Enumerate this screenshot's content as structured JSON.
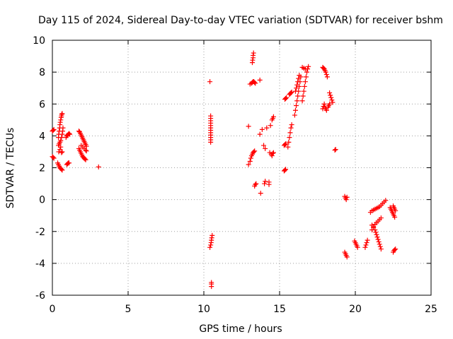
{
  "chart_data": {
    "type": "scatter",
    "title": "Day 115 of 2024, Sidereal Day-to-day VTEC variation (SDTVAR) for receiver bshm",
    "xlabel": "GPS time / hours",
    "ylabel": "SDTVAR / TECUs",
    "xlim": [
      0,
      25
    ],
    "ylim": [
      -6,
      10
    ],
    "xticks": [
      0,
      5,
      10,
      15,
      20,
      25
    ],
    "yticks": [
      -6,
      -4,
      -2,
      0,
      2,
      4,
      6,
      8,
      10
    ],
    "x_tick_labels": [
      "0",
      "5",
      "10",
      "15",
      "20",
      "25"
    ],
    "y_tick_labels": [
      "-6",
      "-4",
      "-2",
      "0",
      "2",
      "4",
      "6",
      "8",
      "10"
    ],
    "grid": true,
    "marker": "+",
    "marker_color": "#ff0000",
    "series": [
      {
        "name": "SDTVAR",
        "points": [
          [
            0.0,
            4.3
          ],
          [
            0.05,
            4.35
          ],
          [
            0.1,
            4.4
          ],
          [
            0.0,
            2.7
          ],
          [
            0.05,
            2.65
          ],
          [
            0.1,
            2.6
          ],
          [
            0.35,
            2.3
          ],
          [
            0.4,
            2.2
          ],
          [
            0.45,
            2.1
          ],
          [
            0.5,
            2.0
          ],
          [
            0.55,
            1.95
          ],
          [
            0.6,
            1.9
          ],
          [
            0.65,
            1.85
          ],
          [
            0.4,
            3.9
          ],
          [
            0.42,
            4.1
          ],
          [
            0.45,
            4.3
          ],
          [
            0.48,
            4.5
          ],
          [
            0.5,
            4.7
          ],
          [
            0.52,
            4.85
          ],
          [
            0.55,
            5.0
          ],
          [
            0.58,
            5.15
          ],
          [
            0.6,
            5.25
          ],
          [
            0.62,
            5.35
          ],
          [
            0.65,
            5.4
          ],
          [
            0.4,
            3.4
          ],
          [
            0.45,
            3.5
          ],
          [
            0.5,
            3.6
          ],
          [
            0.55,
            3.7
          ],
          [
            0.6,
            3.9
          ],
          [
            0.65,
            4.1
          ],
          [
            0.68,
            4.3
          ],
          [
            0.7,
            4.5
          ],
          [
            0.42,
            3.0
          ],
          [
            0.5,
            3.15
          ],
          [
            0.55,
            3.3
          ],
          [
            0.6,
            2.95
          ],
          [
            0.65,
            3.0
          ],
          [
            0.9,
            3.9
          ],
          [
            0.95,
            4.0
          ],
          [
            1.0,
            4.05
          ],
          [
            1.05,
            4.1
          ],
          [
            1.1,
            4.15
          ],
          [
            1.15,
            4.1
          ],
          [
            0.95,
            2.2
          ],
          [
            1.0,
            2.25
          ],
          [
            1.05,
            2.3
          ],
          [
            1.1,
            2.3
          ],
          [
            1.75,
            4.3
          ],
          [
            1.8,
            4.25
          ],
          [
            1.85,
            4.15
          ],
          [
            1.9,
            4.05
          ],
          [
            1.95,
            3.95
          ],
          [
            2.0,
            3.85
          ],
          [
            2.05,
            3.75
          ],
          [
            2.1,
            3.65
          ],
          [
            2.15,
            3.55
          ],
          [
            2.2,
            3.45
          ],
          [
            2.25,
            3.35
          ],
          [
            1.75,
            3.2
          ],
          [
            1.8,
            3.1
          ],
          [
            1.85,
            3.0
          ],
          [
            1.9,
            2.9
          ],
          [
            1.95,
            2.8
          ],
          [
            2.0,
            2.7
          ],
          [
            2.05,
            2.65
          ],
          [
            2.1,
            2.6
          ],
          [
            2.15,
            2.55
          ],
          [
            2.2,
            2.5
          ],
          [
            1.9,
            3.4
          ],
          [
            2.0,
            3.3
          ],
          [
            2.1,
            3.2
          ],
          [
            2.2,
            3.1
          ],
          [
            2.25,
            3.05
          ],
          [
            3.05,
            2.05
          ],
          [
            10.4,
            7.4
          ],
          [
            10.45,
            3.6
          ],
          [
            10.45,
            3.75
          ],
          [
            10.45,
            3.9
          ],
          [
            10.45,
            4.05
          ],
          [
            10.45,
            4.2
          ],
          [
            10.45,
            4.35
          ],
          [
            10.45,
            4.5
          ],
          [
            10.45,
            4.65
          ],
          [
            10.45,
            4.8
          ],
          [
            10.45,
            4.95
          ],
          [
            10.45,
            5.1
          ],
          [
            10.45,
            5.25
          ],
          [
            10.4,
            -3.0
          ],
          [
            10.45,
            -2.85
          ],
          [
            10.48,
            -2.7
          ],
          [
            10.5,
            -2.55
          ],
          [
            10.52,
            -2.4
          ],
          [
            10.55,
            -2.25
          ],
          [
            10.5,
            -5.2
          ],
          [
            10.5,
            -5.3
          ],
          [
            10.5,
            -5.45
          ],
          [
            12.95,
            4.6
          ],
          [
            13.05,
            7.25
          ],
          [
            13.15,
            7.3
          ],
          [
            13.2,
            7.35
          ],
          [
            13.25,
            7.4
          ],
          [
            13.3,
            7.4
          ],
          [
            13.35,
            7.35
          ],
          [
            13.4,
            7.3
          ],
          [
            13.2,
            8.6
          ],
          [
            13.22,
            8.75
          ],
          [
            13.25,
            8.9
          ],
          [
            13.25,
            9.05
          ],
          [
            13.28,
            9.2
          ],
          [
            13.7,
            7.5
          ],
          [
            12.95,
            2.2
          ],
          [
            13.05,
            2.4
          ],
          [
            13.1,
            2.6
          ],
          [
            13.15,
            2.75
          ],
          [
            13.2,
            2.85
          ],
          [
            13.25,
            2.95
          ],
          [
            13.3,
            3.0
          ],
          [
            13.35,
            3.05
          ],
          [
            13.35,
            0.85
          ],
          [
            13.4,
            0.95
          ],
          [
            13.45,
            1.0
          ],
          [
            13.7,
            4.1
          ],
          [
            13.85,
            4.4
          ],
          [
            13.95,
            3.4
          ],
          [
            14.05,
            3.2
          ],
          [
            13.75,
            0.4
          ],
          [
            14.0,
            1.0
          ],
          [
            14.05,
            1.15
          ],
          [
            14.3,
            1.1
          ],
          [
            14.3,
            0.95
          ],
          [
            14.15,
            4.5
          ],
          [
            14.4,
            4.65
          ],
          [
            14.35,
            2.95
          ],
          [
            14.45,
            2.85
          ],
          [
            14.5,
            2.75
          ],
          [
            14.55,
            2.9
          ],
          [
            14.6,
            2.95
          ],
          [
            14.5,
            5.0
          ],
          [
            14.55,
            5.1
          ],
          [
            14.6,
            5.2
          ],
          [
            15.3,
            1.8
          ],
          [
            15.35,
            1.85
          ],
          [
            15.4,
            1.9
          ],
          [
            15.3,
            3.4
          ],
          [
            15.35,
            3.45
          ],
          [
            15.4,
            3.5
          ],
          [
            15.35,
            6.3
          ],
          [
            15.4,
            6.35
          ],
          [
            15.45,
            6.4
          ],
          [
            15.55,
            3.3
          ],
          [
            15.6,
            3.6
          ],
          [
            15.65,
            3.9
          ],
          [
            15.7,
            4.2
          ],
          [
            15.75,
            4.5
          ],
          [
            15.8,
            4.7
          ],
          [
            15.65,
            6.6
          ],
          [
            15.7,
            6.65
          ],
          [
            15.75,
            6.7
          ],
          [
            15.8,
            6.75
          ],
          [
            16.0,
            5.3
          ],
          [
            16.05,
            5.6
          ],
          [
            16.1,
            5.9
          ],
          [
            16.15,
            6.2
          ],
          [
            16.2,
            6.5
          ],
          [
            16.25,
            6.8
          ],
          [
            16.3,
            7.1
          ],
          [
            16.35,
            7.4
          ],
          [
            16.4,
            7.7
          ],
          [
            16.05,
            6.8
          ],
          [
            16.1,
            7.0
          ],
          [
            16.15,
            7.2
          ],
          [
            16.2,
            7.4
          ],
          [
            16.25,
            7.6
          ],
          [
            16.3,
            7.8
          ],
          [
            16.5,
            6.2
          ],
          [
            16.55,
            6.5
          ],
          [
            16.6,
            6.8
          ],
          [
            16.65,
            7.1
          ],
          [
            16.7,
            7.4
          ],
          [
            16.75,
            7.7
          ],
          [
            16.8,
            8.0
          ],
          [
            16.85,
            8.2
          ],
          [
            16.9,
            8.35
          ],
          [
            16.5,
            8.3
          ],
          [
            16.6,
            8.25
          ],
          [
            16.7,
            8.2
          ],
          [
            17.85,
            5.7
          ],
          [
            17.9,
            5.85
          ],
          [
            17.95,
            6.0
          ],
          [
            18.0,
            5.8
          ],
          [
            18.05,
            5.7
          ],
          [
            18.1,
            5.6
          ],
          [
            17.85,
            8.3
          ],
          [
            17.9,
            8.25
          ],
          [
            17.95,
            8.2
          ],
          [
            18.0,
            8.1
          ],
          [
            18.05,
            8.0
          ],
          [
            18.1,
            7.85
          ],
          [
            18.15,
            7.7
          ],
          [
            18.2,
            5.8
          ],
          [
            18.25,
            5.9
          ],
          [
            18.3,
            6.0
          ],
          [
            18.3,
            6.7
          ],
          [
            18.35,
            6.55
          ],
          [
            18.4,
            6.4
          ],
          [
            18.45,
            6.25
          ],
          [
            18.5,
            6.1
          ],
          [
            18.65,
            3.1
          ],
          [
            18.7,
            3.15
          ],
          [
            19.3,
            0.2
          ],
          [
            19.35,
            0.1
          ],
          [
            19.4,
            0.0
          ],
          [
            19.45,
            0.15
          ],
          [
            19.3,
            -3.3
          ],
          [
            19.35,
            -3.4
          ],
          [
            19.4,
            -3.5
          ],
          [
            19.45,
            -3.6
          ],
          [
            19.95,
            -2.6
          ],
          [
            20.0,
            -2.7
          ],
          [
            20.05,
            -2.8
          ],
          [
            20.1,
            -2.9
          ],
          [
            20.15,
            -3.0
          ],
          [
            20.65,
            -3.0
          ],
          [
            20.7,
            -2.85
          ],
          [
            20.75,
            -2.7
          ],
          [
            20.8,
            -2.55
          ],
          [
            21.0,
            -0.8
          ],
          [
            21.1,
            -0.7
          ],
          [
            21.2,
            -0.65
          ],
          [
            21.3,
            -0.6
          ],
          [
            21.4,
            -0.55
          ],
          [
            21.5,
            -0.5
          ],
          [
            21.1,
            -1.6
          ],
          [
            21.2,
            -1.75
          ],
          [
            21.3,
            -1.9
          ],
          [
            21.35,
            -2.05
          ],
          [
            21.4,
            -2.2
          ],
          [
            21.45,
            -2.35
          ],
          [
            21.5,
            -2.5
          ],
          [
            21.55,
            -2.65
          ],
          [
            21.6,
            -2.8
          ],
          [
            21.65,
            -2.95
          ],
          [
            21.7,
            -3.1
          ],
          [
            21.1,
            -1.9
          ],
          [
            21.2,
            -1.7
          ],
          [
            21.3,
            -1.55
          ],
          [
            21.4,
            -1.45
          ],
          [
            21.5,
            -1.35
          ],
          [
            21.6,
            -1.25
          ],
          [
            21.7,
            -1.15
          ],
          [
            21.6,
            -0.45
          ],
          [
            21.7,
            -0.35
          ],
          [
            21.8,
            -0.25
          ],
          [
            21.9,
            -0.15
          ],
          [
            22.0,
            -0.05
          ],
          [
            22.3,
            -0.5
          ],
          [
            22.35,
            -0.6
          ],
          [
            22.4,
            -0.7
          ],
          [
            22.45,
            -0.8
          ],
          [
            22.5,
            -0.9
          ],
          [
            22.55,
            -1.0
          ],
          [
            22.6,
            -1.1
          ],
          [
            22.5,
            -0.4
          ],
          [
            22.55,
            -0.5
          ],
          [
            22.6,
            -0.6
          ],
          [
            22.65,
            -0.7
          ],
          [
            22.5,
            -3.3
          ],
          [
            22.55,
            -3.2
          ],
          [
            22.6,
            -3.15
          ],
          [
            22.65,
            -3.1
          ]
        ]
      }
    ]
  }
}
